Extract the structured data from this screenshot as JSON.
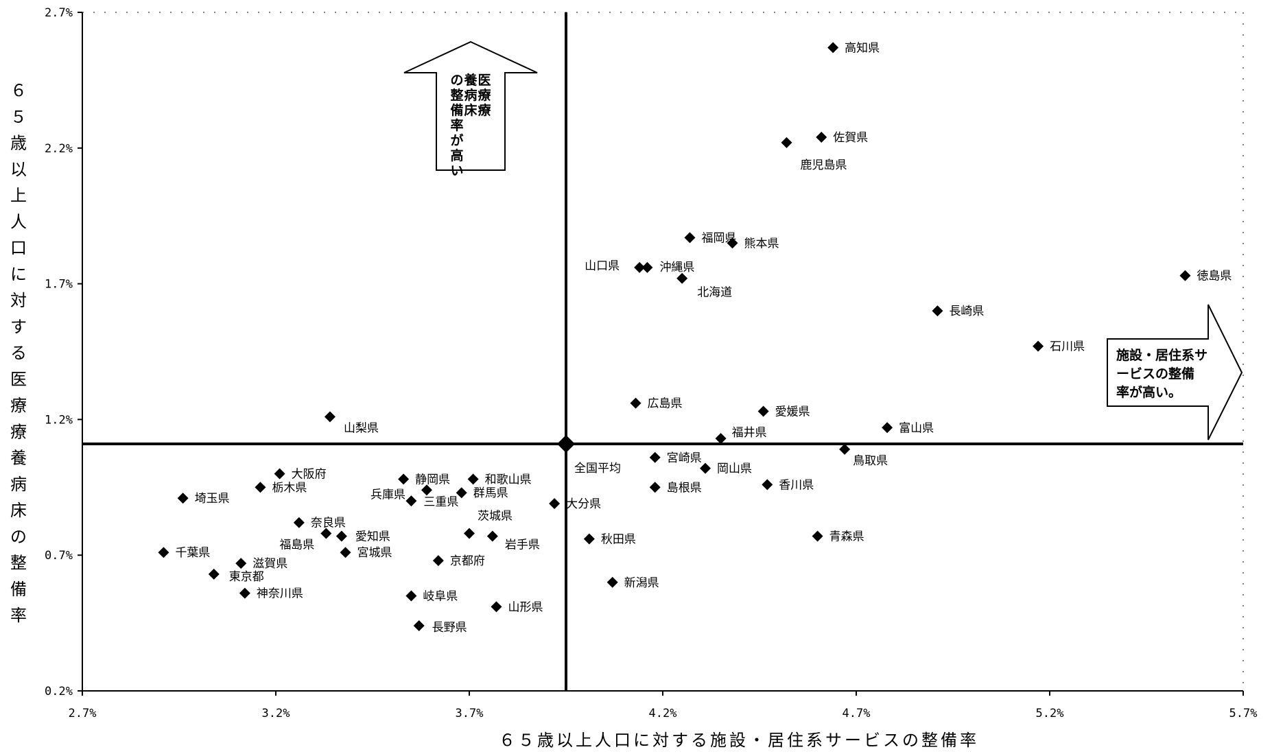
{
  "chart_data": {
    "type": "scatter",
    "xlabel": "６５歳以上人口に対する施設・居住系サービスの整備率",
    "ylabel": "６５歳以上人口に対する医療療養病床の整備率",
    "xlim": [
      2.7,
      5.7
    ],
    "ylim": [
      0.2,
      2.7
    ],
    "x_ticks": [
      2.7,
      3.2,
      3.7,
      4.2,
      4.7,
      5.2,
      5.7
    ],
    "y_ticks": [
      0.2,
      0.7,
      1.2,
      1.7,
      2.2,
      2.7
    ],
    "x_tick_labels": [
      "2.7%",
      "3.2%",
      "3.7%",
      "4.2%",
      "4.7%",
      "5.2%",
      "5.7%"
    ],
    "y_tick_labels": [
      "0.2%",
      "0.7%",
      "1.2%",
      "1.7%",
      "2.2%",
      "2.7%"
    ],
    "average": {
      "name": "全国平均",
      "x": 3.95,
      "y": 1.11
    },
    "annotations": {
      "up_arrow": "医療療養病床の整備率が高い",
      "right_arrow": "施設・居住系サービスの整備率が高い。"
    },
    "points": [
      {
        "name": "高知県",
        "x": 4.64,
        "y": 2.57
      },
      {
        "name": "佐賀県",
        "x": 4.61,
        "y": 2.24
      },
      {
        "name": "鹿児島県",
        "x": 4.52,
        "y": 2.22
      },
      {
        "name": "福岡県",
        "x": 4.27,
        "y": 1.87
      },
      {
        "name": "熊本県",
        "x": 4.38,
        "y": 1.85
      },
      {
        "name": "山口県",
        "x": 4.14,
        "y": 1.76
      },
      {
        "name": "沖縄県",
        "x": 4.16,
        "y": 1.76
      },
      {
        "name": "北海道",
        "x": 4.25,
        "y": 1.72
      },
      {
        "name": "徳島県",
        "x": 5.55,
        "y": 1.73
      },
      {
        "name": "長崎県",
        "x": 4.91,
        "y": 1.6
      },
      {
        "name": "石川県",
        "x": 5.17,
        "y": 1.47
      },
      {
        "name": "広島県",
        "x": 4.13,
        "y": 1.26
      },
      {
        "name": "愛媛県",
        "x": 4.46,
        "y": 1.23
      },
      {
        "name": "富山県",
        "x": 4.78,
        "y": 1.17
      },
      {
        "name": "福井県",
        "x": 4.35,
        "y": 1.13
      },
      {
        "name": "鳥取県",
        "x": 4.67,
        "y": 1.09
      },
      {
        "name": "宮崎県",
        "x": 4.18,
        "y": 1.06
      },
      {
        "name": "岡山県",
        "x": 4.31,
        "y": 1.02
      },
      {
        "name": "島根県",
        "x": 4.18,
        "y": 0.95
      },
      {
        "name": "香川県",
        "x": 4.47,
        "y": 0.96
      },
      {
        "name": "大分県",
        "x": 3.92,
        "y": 0.89
      },
      {
        "name": "秋田県",
        "x": 4.01,
        "y": 0.76
      },
      {
        "name": "青森県",
        "x": 4.6,
        "y": 0.77
      },
      {
        "name": "新潟県",
        "x": 4.07,
        "y": 0.6
      },
      {
        "name": "山梨県",
        "x": 3.34,
        "y": 1.21
      },
      {
        "name": "大阪府",
        "x": 3.21,
        "y": 1.0
      },
      {
        "name": "栃木県",
        "x": 3.16,
        "y": 0.95
      },
      {
        "name": "埼玉県",
        "x": 2.96,
        "y": 0.91
      },
      {
        "name": "静岡県",
        "x": 3.53,
        "y": 0.98
      },
      {
        "name": "和歌山県",
        "x": 3.71,
        "y": 0.98
      },
      {
        "name": "兵庫県",
        "x": 3.59,
        "y": 0.94
      },
      {
        "name": "群馬県",
        "x": 3.68,
        "y": 0.93
      },
      {
        "name": "三重県",
        "x": 3.55,
        "y": 0.9
      },
      {
        "name": "奈良県",
        "x": 3.26,
        "y": 0.82
      },
      {
        "name": "茨城県",
        "x": 3.7,
        "y": 0.78
      },
      {
        "name": "愛知県",
        "x": 3.37,
        "y": 0.77
      },
      {
        "name": "福島県",
        "x": 3.33,
        "y": 0.78
      },
      {
        "name": "岩手県",
        "x": 3.76,
        "y": 0.77
      },
      {
        "name": "宮城県",
        "x": 3.38,
        "y": 0.71
      },
      {
        "name": "京都府",
        "x": 3.62,
        "y": 0.68
      },
      {
        "name": "千葉県",
        "x": 2.91,
        "y": 0.71
      },
      {
        "name": "滋賀県",
        "x": 3.11,
        "y": 0.67
      },
      {
        "name": "東京都",
        "x": 3.04,
        "y": 0.63
      },
      {
        "name": "神奈川県",
        "x": 3.12,
        "y": 0.56
      },
      {
        "name": "岐阜県",
        "x": 3.55,
        "y": 0.55
      },
      {
        "name": "山形県",
        "x": 3.77,
        "y": 0.51
      },
      {
        "name": "長野県",
        "x": 3.57,
        "y": 0.44
      }
    ]
  }
}
